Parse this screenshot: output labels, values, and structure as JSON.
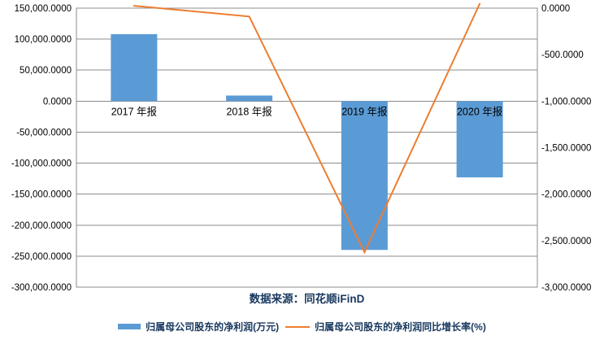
{
  "chart_data": {
    "type": "combo-bar-line",
    "title": "",
    "categories": [
      "2017 年报",
      "2018 年报",
      "2019 年报",
      "2020 年报"
    ],
    "series": [
      {
        "name": "归属母公司股东的净利润(万元)",
        "type": "bar",
        "axis": "left",
        "color": "#5B9BD5",
        "values": [
          108000,
          9000,
          -240000,
          -123000
        ]
      },
      {
        "name": "归属母公司股东的净利润同比增长率(%)",
        "type": "line",
        "axis": "right",
        "color": "#ED7D31",
        "values": [
          25,
          -90,
          -2625,
          47
        ]
      }
    ],
    "left_axis": {
      "max": 150000,
      "min": -300000,
      "step": 50000,
      "labels": [
        "150,000.0000",
        "100,000.0000",
        "50,000.0000",
        "0.0000",
        "-50,000.0000",
        "-100,000.0000",
        "-150,000.0000",
        "-200,000.0000",
        "-250,000.0000",
        "-300,000.0000"
      ]
    },
    "right_axis": {
      "max": 0,
      "min": -3000,
      "step": 500,
      "labels": [
        "0.0000",
        "-500.0000",
        "-1,000.0000",
        "-1,500.0000",
        "-2,000.0000",
        "-2,500.0000",
        "-3,000.0000"
      ]
    },
    "grid": true,
    "legend_position": "bottom",
    "source_note": "数据来源：同花顺iFinD",
    "colors": {
      "bar": "#5B9BD5",
      "line": "#ED7D31",
      "grid": "#8C8C8C",
      "axis_text": "#000000",
      "note_text": "#17375E",
      "background": "#FFFFFF"
    }
  }
}
